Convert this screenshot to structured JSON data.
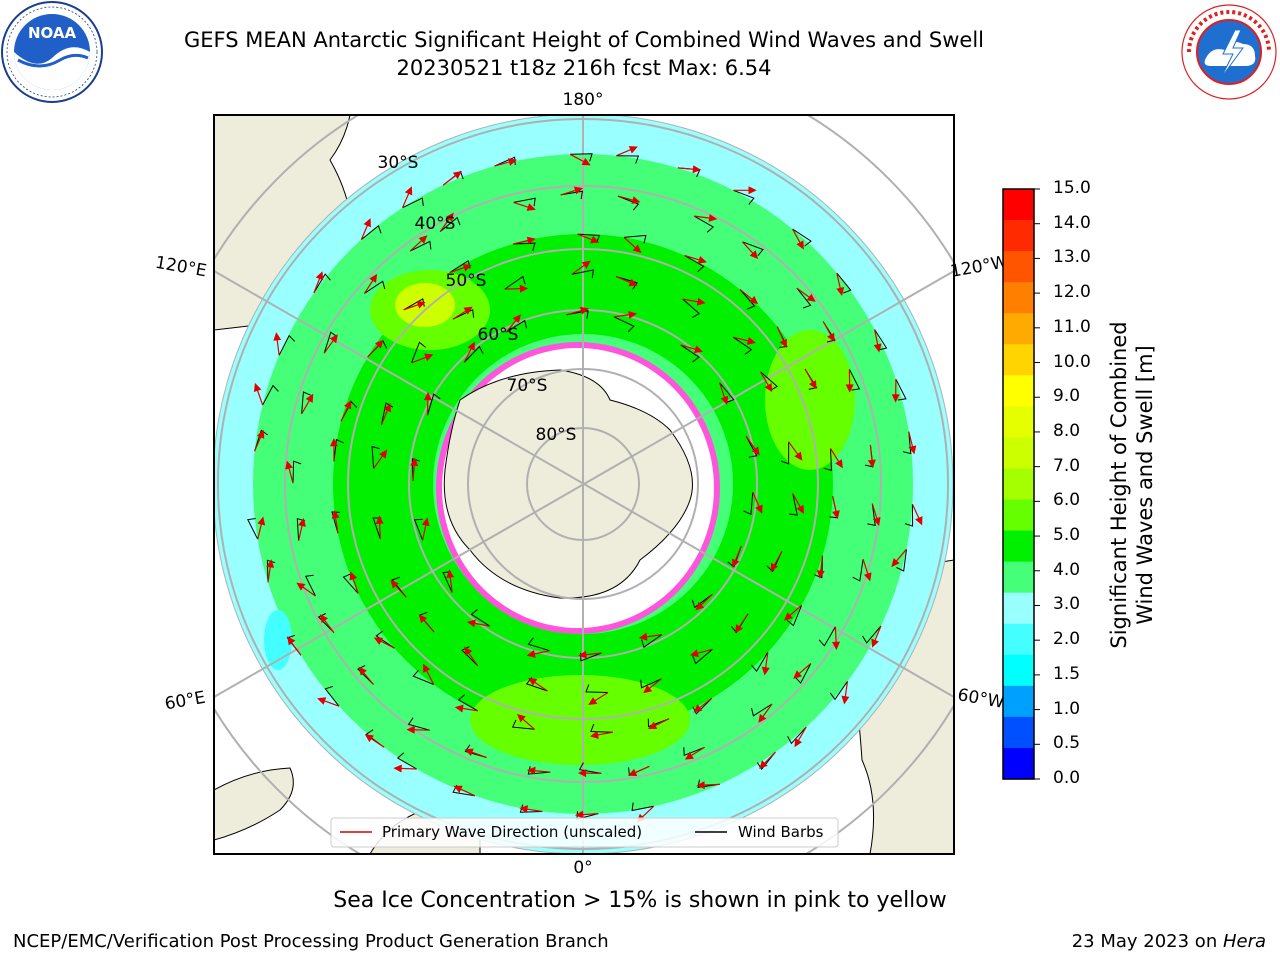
{
  "header": {
    "title_line1": "GEFS MEAN Antarctic Significant Height of Combined Wind Waves and Swell",
    "title_line2": "20230521 t18z 216h fcst   Max: 6.54"
  },
  "logos": {
    "left": "noaa-logo",
    "right": "national-weather-service-logo"
  },
  "map": {
    "projection": "south-polar-stereographic",
    "meridian_labels": [
      "180°",
      "120°E",
      "120°W",
      "60°E",
      "60°W",
      "0°"
    ],
    "parallel_labels": [
      "30°S",
      "40°S",
      "50°S",
      "60°S",
      "70°S",
      "80°S"
    ],
    "legend": {
      "primary_wave": "Primary Wave Direction (unscaled)",
      "wind_barbs": "Wind Barbs"
    }
  },
  "colorbar": {
    "label_line1": "Significant Height of Combined",
    "label_line2": "Wind Waves and Swell [m]",
    "ticks": [
      "15.0",
      "14.0",
      "13.0",
      "12.0",
      "11.0",
      "10.0",
      "9.0",
      "8.0",
      "7.0",
      "6.0",
      "5.0",
      "4.0",
      "3.0",
      "2.0",
      "1.5",
      "1.0",
      "0.5",
      "0.0"
    ],
    "colors": [
      "#ff0000",
      "#ff2a00",
      "#ff5500",
      "#ff7f00",
      "#ffaa00",
      "#ffd400",
      "#ffff00",
      "#e5ff00",
      "#ccff00",
      "#a6ff00",
      "#66ff00",
      "#00f000",
      "#44ff77",
      "#99ffff",
      "#44ffff",
      "#00ffff",
      "#00a0ff",
      "#0050ff",
      "#0000ff"
    ]
  },
  "caption": "Sea Ice Concentration > 15% is shown in pink to yellow",
  "footer": {
    "left": "NCEP/EMC/Verification Post Processing Product Generation Branch",
    "right_prefix": "23 May 2023 on ",
    "right_host": "Hera"
  }
}
